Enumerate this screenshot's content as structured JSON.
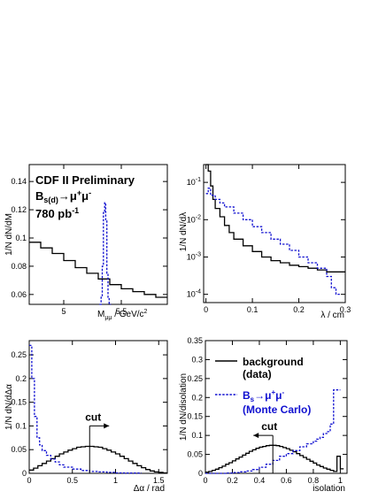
{
  "annotation": {
    "line1": "CDF II Preliminary",
    "line2_main": "B",
    "line2_sub": "s(d)",
    "line2_arrow": "→μ",
    "line2_sup1": "+",
    "line2_mu": "μ",
    "line2_sup2": "-",
    "line3_main": "780 pb",
    "line3_sup": "-1"
  },
  "legend": {
    "bg_line1": "background",
    "bg_line2": "(data)",
    "mc_main": "B",
    "mc_sub": "s",
    "mc_arrow": "→μ",
    "mc_sup1": "+",
    "mc_mu": "μ",
    "mc_sup2": "-",
    "mc_line2": "(Monte Carlo)"
  },
  "cut_label": "cut",
  "colors": {
    "background": "#000000",
    "monte_carlo": "#1010d0"
  },
  "chart_data": [
    {
      "type": "histogram",
      "ylabel": "1/N dN/dM",
      "xlabel_main": "M",
      "xlabel_sub": "μμ",
      "xlabel_rest": " / GeV/c",
      "xlabel_sup": "2",
      "xlim": [
        4.7,
        5.9
      ],
      "ylim": [
        0.053,
        0.152
      ],
      "xticks": [
        5,
        5.5
      ],
      "xtick_labels": [
        "5",
        "5.5"
      ],
      "yticks": [
        0.06,
        0.08,
        0.1,
        0.12,
        0.14
      ],
      "ytick_labels": [
        "0.06",
        "0.08",
        "0.1",
        "0.12",
        "0.14"
      ],
      "series": [
        {
          "style": "background",
          "edges": [
            4.7,
            4.8,
            4.9,
            5.0,
            5.1,
            5.2,
            5.3,
            5.4,
            5.5,
            5.6,
            5.7,
            5.8,
            5.9
          ],
          "values": [
            0.097,
            0.093,
            0.089,
            0.084,
            0.079,
            0.075,
            0.071,
            0.067,
            0.064,
            0.062,
            0.06,
            0.058
          ]
        },
        {
          "style": "monte_carlo",
          "edges": [
            5.31,
            5.325,
            5.335,
            5.345,
            5.355,
            5.365,
            5.375,
            5.385,
            5.395,
            5.41
          ],
          "values": [
            0.053,
            0.058,
            0.08,
            0.118,
            0.125,
            0.112,
            0.075,
            0.058,
            0.053
          ]
        }
      ]
    },
    {
      "type": "histogram",
      "ylabel": "1/N dN/dλ",
      "xlabel": "λ / cm",
      "xlim": [
        -0.005,
        0.3
      ],
      "ylim": [
        6e-05,
        0.3
      ],
      "yscale": "log",
      "xticks": [
        0,
        0.1,
        0.2,
        0.3
      ],
      "xtick_labels": [
        "0",
        "0.1",
        "0.2",
        "0.3"
      ],
      "yticks": [
        0.0001,
        0.001,
        0.01,
        0.1
      ],
      "ytick_labels": [
        "10-4",
        "10-3",
        "10-2",
        "10-1"
      ],
      "series": [
        {
          "style": "background",
          "edges": [
            0,
            0.005,
            0.01,
            0.015,
            0.02,
            0.03,
            0.04,
            0.05,
            0.06,
            0.08,
            0.1,
            0.12,
            0.14,
            0.16,
            0.18,
            0.2,
            0.22,
            0.24,
            0.26,
            0.28,
            0.3
          ],
          "values": [
            0.3,
            0.2,
            0.08,
            0.035,
            0.02,
            0.012,
            0.007,
            0.0045,
            0.003,
            0.002,
            0.0014,
            0.001,
            0.0008,
            0.0007,
            0.0006,
            0.00055,
            0.0005,
            0.00045,
            0.0004,
            0.0004
          ]
        },
        {
          "style": "monte_carlo",
          "edges": [
            0,
            0.005,
            0.01,
            0.02,
            0.03,
            0.04,
            0.06,
            0.08,
            0.1,
            0.12,
            0.14,
            0.16,
            0.18,
            0.2,
            0.22,
            0.24,
            0.26,
            0.27,
            0.28,
            0.29
          ],
          "values": [
            0.05,
            0.07,
            0.045,
            0.035,
            0.028,
            0.022,
            0.015,
            0.01,
            0.0065,
            0.0045,
            0.003,
            0.0022,
            0.0015,
            0.001,
            0.0007,
            0.0005,
            0.0003,
            0.00015,
            0.0001
          ]
        }
      ]
    },
    {
      "type": "histogram",
      "ylabel": "1/N dN/dΔα",
      "xlabel": "Δα / rad",
      "xlim": [
        0,
        1.6
      ],
      "ylim": [
        0,
        0.28
      ],
      "xticks": [
        0,
        0.5,
        1,
        1.5
      ],
      "xtick_labels": [
        "0",
        "0.5",
        "1",
        "1.5"
      ],
      "yticks": [
        0,
        0.05,
        0.1,
        0.15,
        0.2,
        0.25
      ],
      "ytick_labels": [
        "0",
        "0.05",
        "0.1",
        "0.15",
        "0.2",
        "0.25"
      ],
      "cut": {
        "x": 0.7,
        "direction": "right",
        "y_top": 0.1
      },
      "series": [
        {
          "style": "background",
          "edges": [
            0,
            0.05,
            0.1,
            0.15,
            0.2,
            0.25,
            0.3,
            0.35,
            0.4,
            0.45,
            0.5,
            0.55,
            0.6,
            0.65,
            0.7,
            0.75,
            0.8,
            0.85,
            0.9,
            0.95,
            1.0,
            1.05,
            1.1,
            1.15,
            1.2,
            1.25,
            1.3,
            1.35,
            1.4,
            1.45,
            1.5,
            1.55,
            1.6
          ],
          "values": [
            0.007,
            0.011,
            0.016,
            0.021,
            0.026,
            0.031,
            0.036,
            0.041,
            0.045,
            0.049,
            0.052,
            0.055,
            0.056,
            0.057,
            0.057,
            0.056,
            0.055,
            0.052,
            0.049,
            0.045,
            0.041,
            0.036,
            0.031,
            0.026,
            0.021,
            0.016,
            0.012,
            0.008,
            0.005,
            0.003,
            0.002,
            0.001
          ]
        },
        {
          "style": "monte_carlo",
          "edges": [
            0,
            0.03,
            0.06,
            0.09,
            0.12,
            0.15,
            0.2,
            0.25,
            0.3,
            0.35,
            0.4,
            0.5,
            0.6,
            0.7,
            0.8,
            0.9,
            1.0,
            1.1,
            1.3
          ],
          "values": [
            0.27,
            0.2,
            0.12,
            0.075,
            0.06,
            0.048,
            0.038,
            0.03,
            0.024,
            0.018,
            0.013,
            0.009,
            0.006,
            0.004,
            0.003,
            0.002,
            0.001,
            0.0005
          ]
        }
      ]
    },
    {
      "type": "histogram",
      "ylabel": "1/N dN/disolation",
      "xlabel": "isolation",
      "xlim": [
        0,
        1.05
      ],
      "ylim": [
        0,
        0.35
      ],
      "xticks": [
        0,
        0.2,
        0.4,
        0.6,
        0.8,
        1
      ],
      "xtick_labels": [
        "0",
        "0.2",
        "0.4",
        "0.6",
        "0.8",
        "1"
      ],
      "yticks": [
        0,
        0.05,
        0.1,
        0.15,
        0.2,
        0.25,
        0.3,
        0.35
      ],
      "ytick_labels": [
        "0",
        "0.05",
        "0.1",
        "0.15",
        "0.2",
        "0.25",
        "0.3",
        "0.35"
      ],
      "cut": {
        "x": 0.5,
        "direction": "left",
        "y_top": 0.1
      },
      "series": [
        {
          "style": "background",
          "edges": [
            0,
            0.025,
            0.05,
            0.075,
            0.1,
            0.125,
            0.15,
            0.175,
            0.2,
            0.225,
            0.25,
            0.275,
            0.3,
            0.325,
            0.35,
            0.375,
            0.4,
            0.425,
            0.45,
            0.475,
            0.5,
            0.525,
            0.55,
            0.575,
            0.6,
            0.625,
            0.65,
            0.675,
            0.7,
            0.725,
            0.75,
            0.775,
            0.8,
            0.825,
            0.85,
            0.875,
            0.9,
            0.925,
            0.95,
            0.975,
            1.0,
            1.025
          ],
          "values": [
            0.003,
            0.005,
            0.008,
            0.011,
            0.015,
            0.019,
            0.024,
            0.028,
            0.033,
            0.038,
            0.043,
            0.048,
            0.053,
            0.058,
            0.062,
            0.066,
            0.069,
            0.071,
            0.073,
            0.074,
            0.074,
            0.073,
            0.071,
            0.068,
            0.065,
            0.061,
            0.057,
            0.052,
            0.047,
            0.042,
            0.037,
            0.032,
            0.027,
            0.022,
            0.018,
            0.014,
            0.011,
            0.008,
            0.005,
            0.045,
            0.012
          ]
        },
        {
          "style": "monte_carlo",
          "edges": [
            0,
            0.05,
            0.1,
            0.15,
            0.2,
            0.25,
            0.3,
            0.35,
            0.4,
            0.45,
            0.5,
            0.55,
            0.6,
            0.65,
            0.7,
            0.75,
            0.8,
            0.825,
            0.85,
            0.875,
            0.9,
            0.925,
            0.95,
            0.975,
            1.0
          ],
          "values": [
            0.0,
            0.0,
            0.0,
            0.001,
            0.002,
            0.004,
            0.006,
            0.01,
            0.016,
            0.024,
            0.034,
            0.045,
            0.052,
            0.06,
            0.07,
            0.078,
            0.085,
            0.09,
            0.095,
            0.105,
            0.11,
            0.13,
            0.22,
            0.22
          ]
        }
      ]
    }
  ]
}
